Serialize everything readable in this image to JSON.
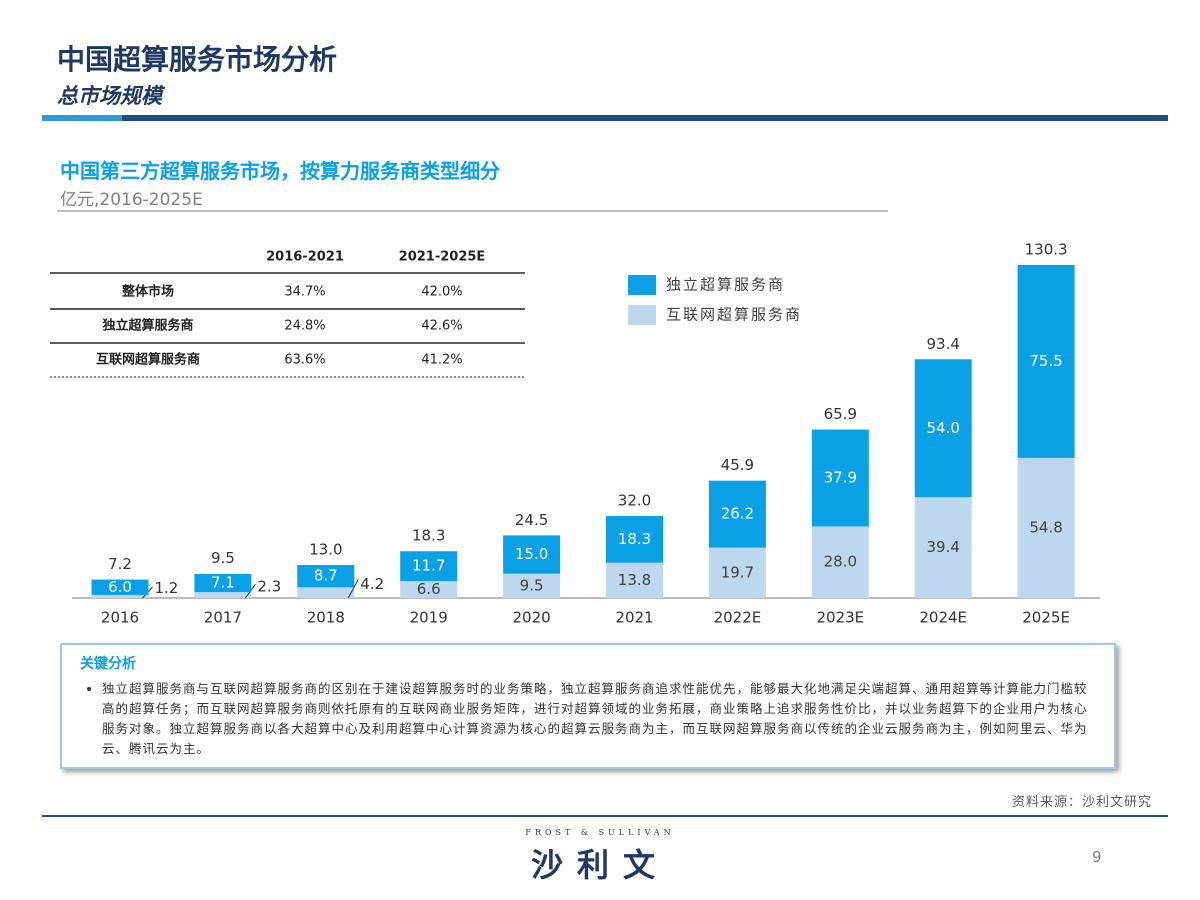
{
  "header": {
    "title": "中国超算服务市场分析",
    "subtitle": "总市场规模"
  },
  "chart_data": {
    "type": "stacked_bar",
    "title": "中国第三方超算服务市场，按算力服务商类型细分",
    "subtitle": "亿元,2016-2025E",
    "categories": [
      "2016",
      "2017",
      "2018",
      "2019",
      "2020",
      "2021",
      "2022E",
      "2023E",
      "2024E",
      "2025E"
    ],
    "series": [
      {
        "name": "独立超算服务商",
        "color": "#0aa0e6",
        "values": [
          6.0,
          7.1,
          8.7,
          11.7,
          15.0,
          18.3,
          26.2,
          37.9,
          54.0,
          75.5
        ],
        "value_labels": [
          "6.0",
          "7.1",
          "8.7",
          "11.7",
          "15.0",
          "18.3",
          "26.2",
          "37.9",
          "54.0",
          "75.5"
        ]
      },
      {
        "name": "互联网超算服务商",
        "color": "#bdd7ee",
        "values": [
          1.2,
          2.3,
          4.2,
          6.6,
          9.5,
          13.8,
          19.7,
          28.0,
          39.4,
          54.8
        ],
        "value_labels": [
          "1.2",
          "2.3",
          "4.2",
          "6.6",
          "9.5",
          "13.8",
          "19.7",
          "28.0",
          "39.4",
          "54.8"
        ]
      }
    ],
    "totals": [
      7.2,
      9.5,
      13.0,
      18.3,
      24.5,
      32.0,
      45.9,
      65.9,
      93.4,
      130.3
    ],
    "total_labels": [
      "7.2",
      "9.5",
      "13.0",
      "18.3",
      "24.5",
      "32.0",
      "45.9",
      "65.9",
      "93.4",
      "130.3"
    ]
  },
  "table": {
    "columns": [
      "2016-2021",
      "2021-2025E"
    ],
    "rows": [
      [
        "整体市场",
        "34.7%",
        "42.0%"
      ],
      [
        "独立超算服务商",
        "24.8%",
        "42.6%"
      ],
      [
        "互联网超算服务商",
        "63.6%",
        "41.2%"
      ]
    ]
  },
  "analysis": {
    "title": "关键分析",
    "bullets": [
      "独立超算服务商与互联网超算服务商的区别在于建设超算服务时的业务策略，独立超算服务商追求性能优先，能够最大化地满足尖端超算、通用超算等计算能力门槛较高的超算任务；而互联网超算服务商则依托原有的互联网商业服务矩阵，进行对超算领域的业务拓展，商业策略上追求服务性价比，并以业务超算下的企业用户为核心服务对象。独立超算服务商以各大超算中心及利用超算中心计算资源为核心的超算云服务商为主，而互联网超算服务商以传统的企业云服务商为主，例如阿里云、华为云、腾讯云为主。"
    ]
  },
  "source": "资料来源：沙利文研究",
  "footer": {
    "brand_en": "FROST & SULLIVAN",
    "brand_cn": "沙利文",
    "page": "9"
  }
}
